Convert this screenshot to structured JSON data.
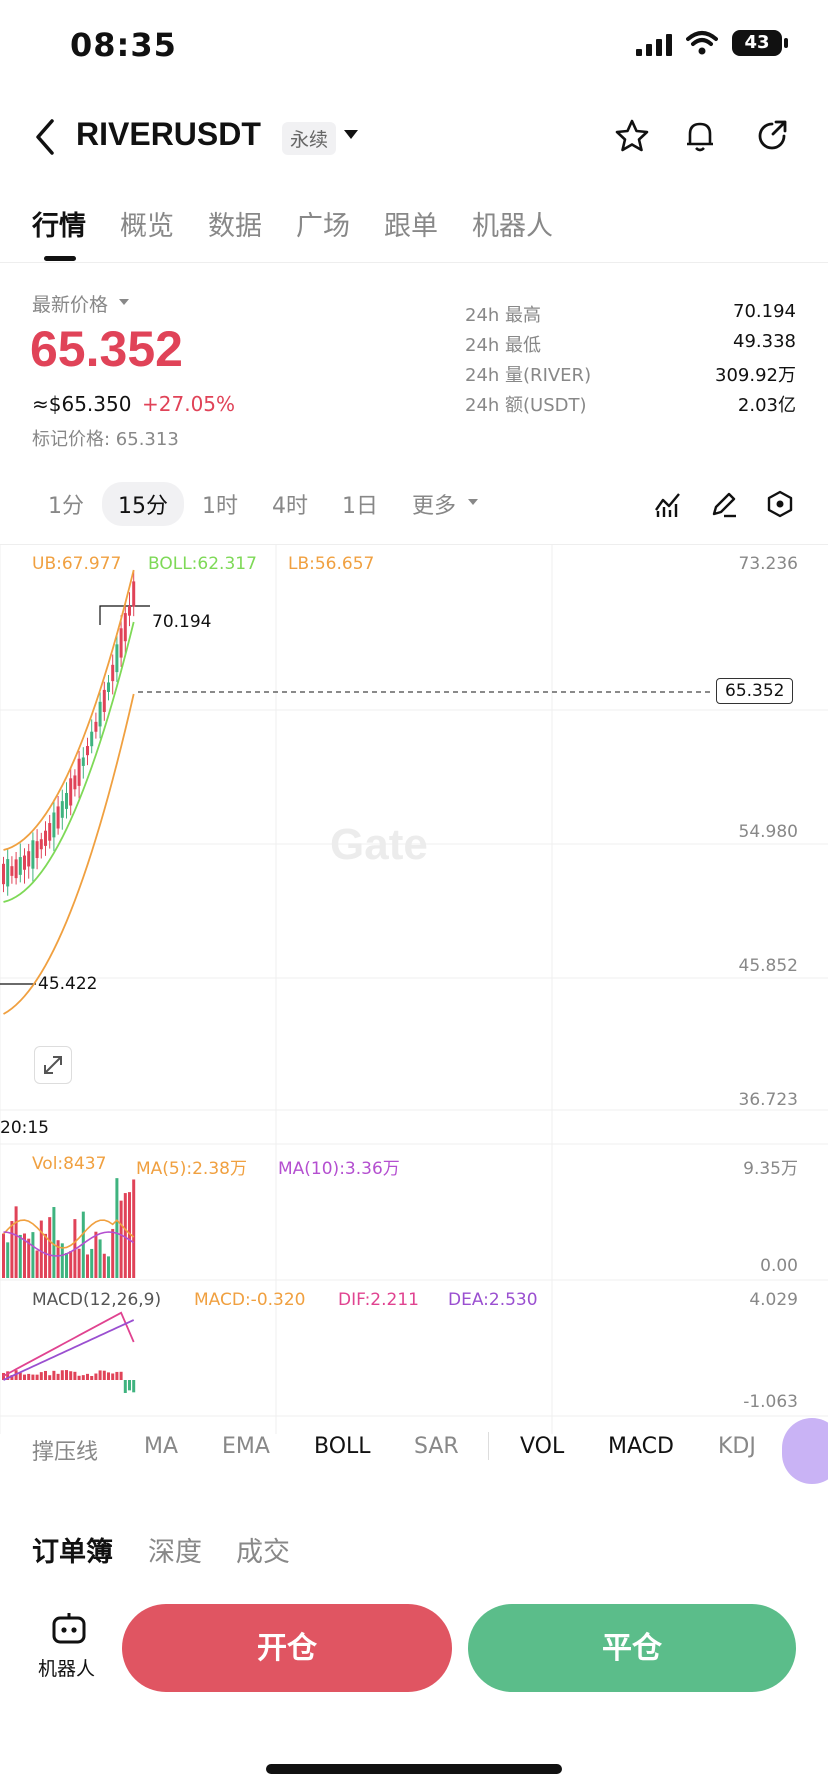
{
  "status_bar": {
    "time": "08:35",
    "battery": "43"
  },
  "header": {
    "pair": "RIVERUSDT",
    "contract_type": "永续"
  },
  "tabs": [
    {
      "label": "行情"
    },
    {
      "label": "概览"
    },
    {
      "label": "数据"
    },
    {
      "label": "广场"
    },
    {
      "label": "跟单"
    },
    {
      "label": "机器人"
    }
  ],
  "price_panel": {
    "latest_label": "最新价格",
    "last_price": "65.352",
    "usd_value": "≈$65.350",
    "change": "+27.05%",
    "mark_price": "标记价格: 65.313"
  },
  "stats": [
    {
      "label": "24h  最高",
      "value": "70.194"
    },
    {
      "label": "24h  最低",
      "value": "49.338"
    },
    {
      "label": "24h  量(RIVER)",
      "value": "309.92万"
    },
    {
      "label": "24h  额(USDT)",
      "value": "2.03亿"
    }
  ],
  "timeframes": [
    {
      "label": "1分"
    },
    {
      "label": "15分"
    },
    {
      "label": "1时"
    },
    {
      "label": "4时"
    },
    {
      "label": "1日"
    },
    {
      "label": "更多"
    }
  ],
  "chart": {
    "legend": {
      "ub": "UB:67.977",
      "boll": "BOLL:62.317",
      "lb": "LB:56.657"
    },
    "y_axis": [
      "73.236",
      "54.980",
      "45.852",
      "36.723"
    ],
    "high_annot": "70.194",
    "low_annot": "45.422",
    "current_price_tag": "65.352",
    "time_label": "20:15",
    "watermark": "Gate",
    "colors": {
      "up": "#e04358",
      "down": "#3fb37f",
      "ub": "#f0a040",
      "boll": "#7ed957",
      "lb": "#f0a040"
    }
  },
  "volume": {
    "vol": "Vol:8437",
    "ma5": "MA(5):2.38万",
    "ma10": "MA(10):3.36万",
    "axis_top": "9.35万",
    "axis_bottom": "0.00"
  },
  "macd": {
    "label": "MACD(12,26,9)",
    "macd": "MACD:-0.320",
    "dif": "DIF:2.211",
    "dea": "DEA:2.530",
    "axis_top": "4.029",
    "axis_bottom": "-1.063"
  },
  "indicators": [
    {
      "label": "撑压线"
    },
    {
      "label": "MA"
    },
    {
      "label": "EMA"
    },
    {
      "label": "BOLL"
    },
    {
      "label": "SAR"
    },
    {
      "label": "VOL"
    },
    {
      "label": "MACD"
    },
    {
      "label": "KDJ"
    }
  ],
  "book_tabs": [
    {
      "label": "订单簿"
    },
    {
      "label": "深度"
    },
    {
      "label": "成交"
    }
  ],
  "bottom": {
    "robot_label": "机器人",
    "open_label": "开仓",
    "close_label": "平仓"
  }
}
